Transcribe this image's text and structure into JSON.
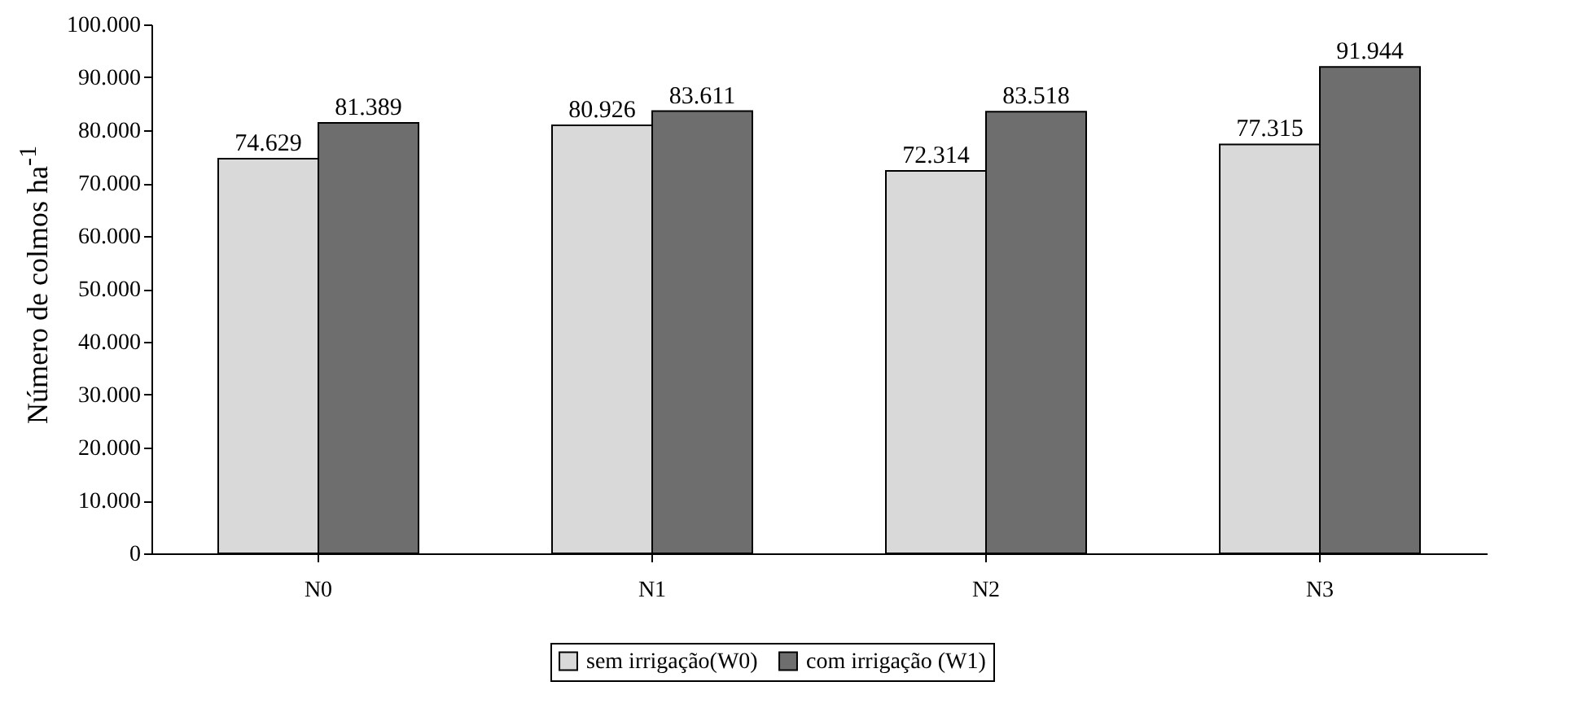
{
  "chart_data": {
    "type": "bar",
    "ylabel": "Número de colmos ha$^{-1}$",
    "categories": [
      "N0",
      "N1",
      "N2",
      "N3"
    ],
    "series": [
      {
        "name": "sem irrigação(W0)",
        "color": "#d9d9d9",
        "values": [
          74629,
          80926,
          72314,
          77315
        ],
        "value_labels": [
          "74.629",
          "80.926",
          "72.314",
          "77.315"
        ]
      },
      {
        "name": "com irrigação (W1)",
        "color": "#6e6e6e",
        "values": [
          81389,
          83611,
          83518,
          91944
        ],
        "value_labels": [
          "81.389",
          "83.611",
          "83.518",
          "91.944"
        ]
      }
    ],
    "ylim": [
      0,
      100000
    ],
    "yticks": [
      {
        "value": 0,
        "label": "0"
      },
      {
        "value": 10000,
        "label": "10.000"
      },
      {
        "value": 20000,
        "label": "20.000"
      },
      {
        "value": 30000,
        "label": "30.000"
      },
      {
        "value": 40000,
        "label": "40.000"
      },
      {
        "value": 50000,
        "label": "50.000"
      },
      {
        "value": 60000,
        "label": "60.000"
      },
      {
        "value": 70000,
        "label": "70.000"
      },
      {
        "value": 80000,
        "label": "80.000"
      },
      {
        "value": 90000,
        "label": "90.000"
      },
      {
        "value": 100000,
        "label": "100.000"
      }
    ],
    "grid": false,
    "legend": "bottom"
  }
}
